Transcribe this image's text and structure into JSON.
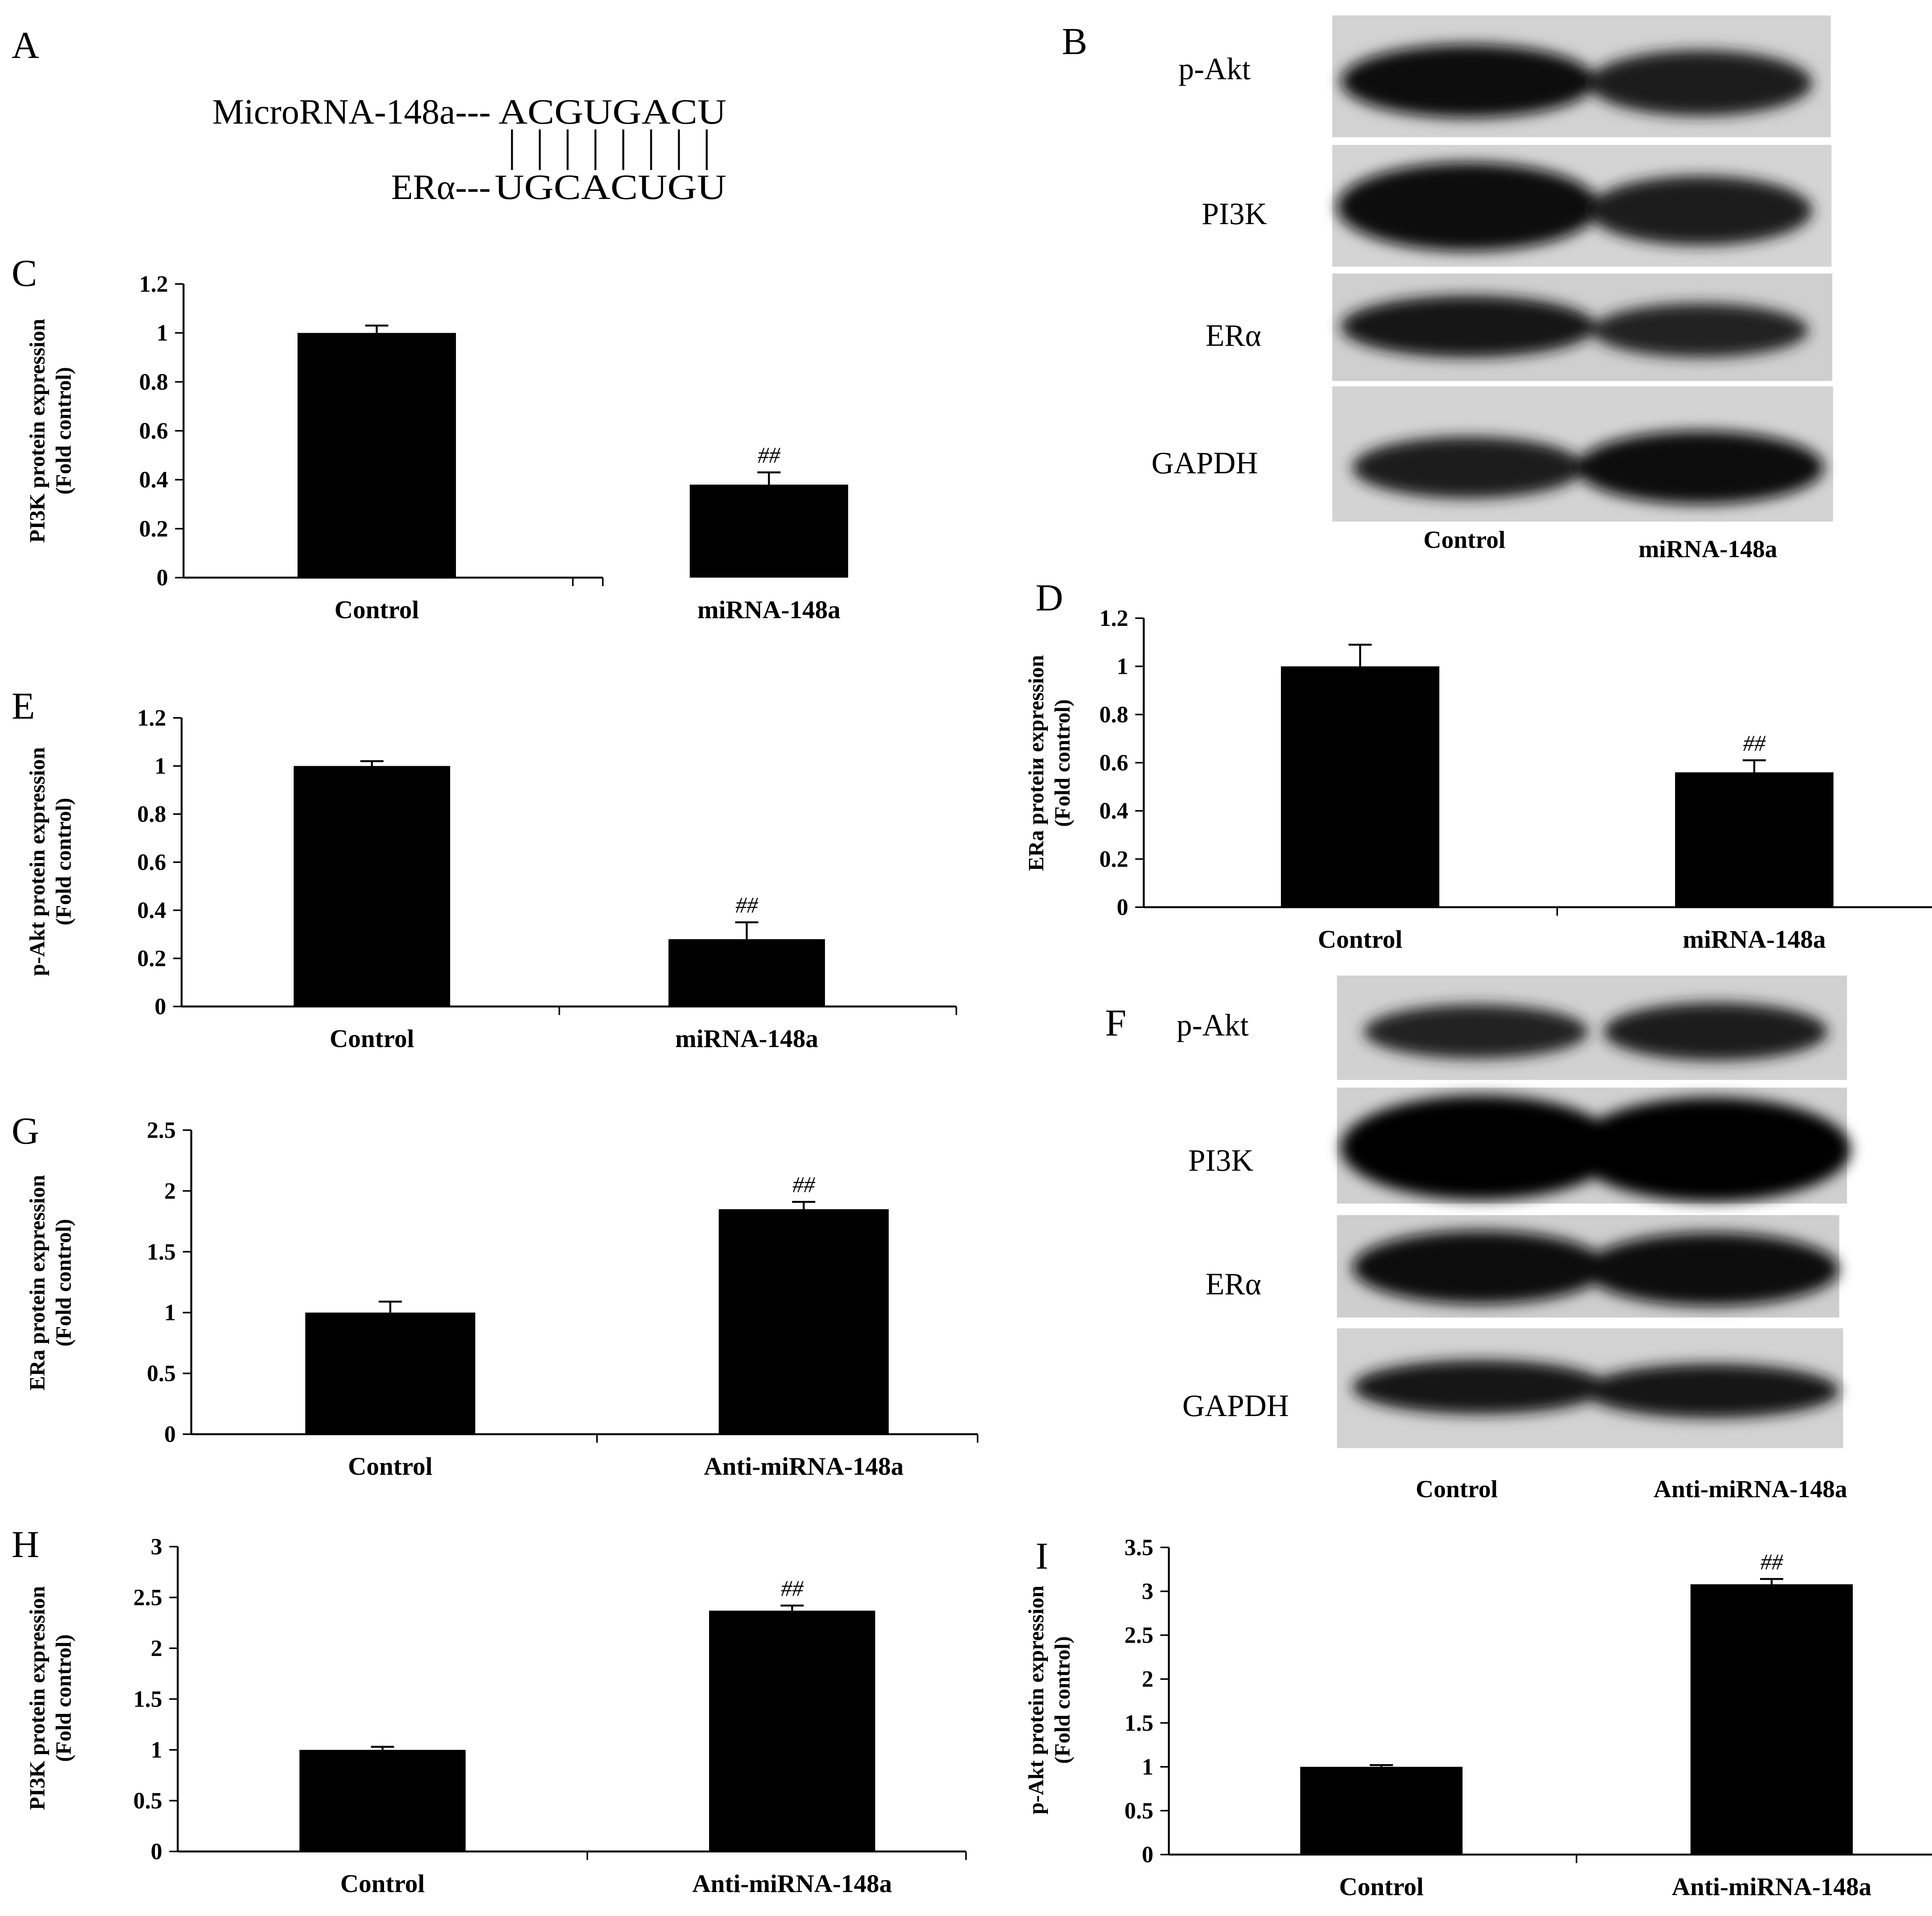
{
  "panel_letters": {
    "A": "A",
    "B": "B",
    "C": "C",
    "D": "D",
    "E": "E",
    "F": "F",
    "G": "G",
    "H": "H",
    "I": "I"
  },
  "panel_a": {
    "top_label": "MicroRNA-148a---",
    "top_seq": "ACGUGACU",
    "bottom_label": "ERα---",
    "bottom_seq": "UGCACUGU"
  },
  "blot_b": {
    "rows": [
      "p-Akt",
      "PI3K",
      "ERα",
      "GAPDH"
    ],
    "lanes": [
      "Control",
      "miRNA-148a"
    ]
  },
  "blot_f": {
    "rows": [
      "p-Akt",
      "PI3K",
      "ERα",
      "GAPDH"
    ],
    "lanes": [
      "Control",
      "Anti-miRNA-148a"
    ]
  },
  "chart_data": [
    {
      "panel": "C",
      "type": "bar",
      "categories": [
        "Control",
        "miRNA-148a"
      ],
      "values": [
        1.0,
        0.38
      ],
      "errors": [
        0.03,
        0.05
      ],
      "significance": [
        "",
        "##"
      ],
      "ylabel_line1": "PI3K protein expression",
      "ylabel_line2": "(Fold control)",
      "ylim": [
        0,
        1.2
      ],
      "ticks": [
        "0",
        "0.2",
        "0.4",
        "0.6",
        "0.8",
        "1",
        "1.2"
      ]
    },
    {
      "panel": "D",
      "type": "bar",
      "categories": [
        "Control",
        "miRNA-148a"
      ],
      "values": [
        1.0,
        0.56
      ],
      "errors": [
        0.09,
        0.05
      ],
      "significance": [
        "",
        "##"
      ],
      "ylabel_line1": "ERa proteiи expression",
      "ylabel_line2": "(Fold control)",
      "ylim": [
        0,
        1.2
      ],
      "ticks": [
        "0",
        "0.2",
        "0.4",
        "0.6",
        "0.8",
        "1",
        "1.2"
      ]
    },
    {
      "panel": "E",
      "type": "bar",
      "categories": [
        "Control",
        "miRNA-148a"
      ],
      "values": [
        1.0,
        0.28
      ],
      "errors": [
        0.02,
        0.07
      ],
      "significance": [
        "",
        "##"
      ],
      "ylabel_line1": "p-Akt protein expression",
      "ylabel_line2": "(Fold control)",
      "ylim": [
        0,
        1.2
      ],
      "ticks": [
        "0",
        "0.2",
        "0.4",
        "0.6",
        "0.8",
        "1",
        "1.2"
      ]
    },
    {
      "panel": "G",
      "type": "bar",
      "categories": [
        "Control",
        "Anti-miRNA-148a"
      ],
      "values": [
        1.0,
        1.85
      ],
      "errors": [
        0.09,
        0.06
      ],
      "significance": [
        "",
        "##"
      ],
      "ylabel_line1": "ERa protein expression",
      "ylabel_line2": "(Fold control)",
      "ylim": [
        0,
        2.5
      ],
      "ticks": [
        "0",
        "0.5",
        "1",
        "1.5",
        "2",
        "2.5"
      ]
    },
    {
      "panel": "H",
      "type": "bar",
      "categories": [
        "Control",
        "Anti-miRNA-148a"
      ],
      "values": [
        1.0,
        2.37
      ],
      "errors": [
        0.03,
        0.05
      ],
      "significance": [
        "",
        "##"
      ],
      "ylabel_line1": "PI3K protein expression",
      "ylabel_line2": "(Fold control)",
      "ylim": [
        0,
        3
      ],
      "ticks": [
        "0",
        "0.5",
        "1",
        "1.5",
        "2",
        "2.5",
        "3"
      ]
    },
    {
      "panel": "I",
      "type": "bar",
      "categories": [
        "Control",
        "Anti-miRNA-148a"
      ],
      "values": [
        1.0,
        3.08
      ],
      "errors": [
        0.02,
        0.06
      ],
      "significance": [
        "",
        "##"
      ],
      "ylabel_line1": "p-Akt protein expression",
      "ylabel_line2": "(Fold control)",
      "ylim": [
        0,
        3.5
      ],
      "ticks": [
        "0",
        "0.5",
        "1",
        "1.5",
        "2",
        "2.5",
        "3",
        "3.5"
      ]
    }
  ]
}
